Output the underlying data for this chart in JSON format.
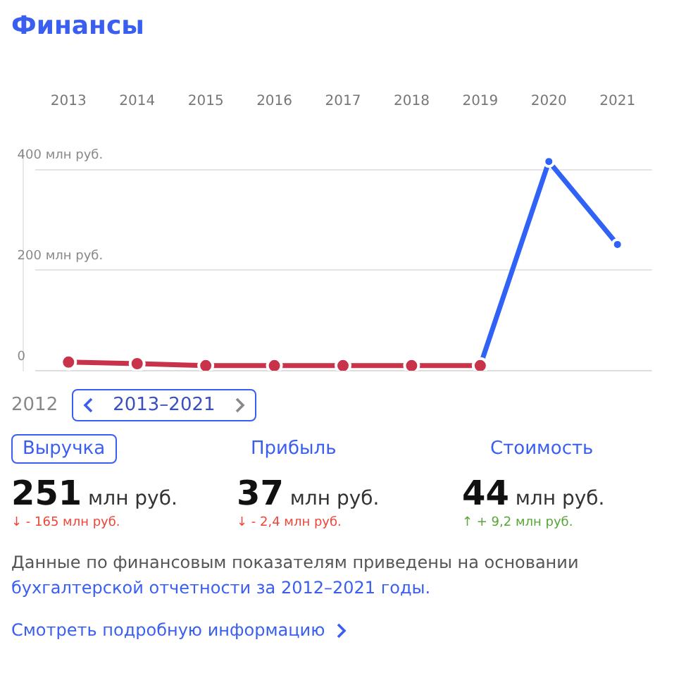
{
  "chart_data": {
    "type": "line",
    "title": "Финансы",
    "categories": [
      "2013",
      "2014",
      "2015",
      "2016",
      "2017",
      "2018",
      "2019",
      "2020",
      "2021"
    ],
    "series": [
      {
        "color": "#c8324a",
        "values": [
          17,
          14,
          10,
          10,
          10,
          10,
          10,
          null,
          null
        ]
      },
      {
        "color": "#2f62f5",
        "values": [
          null,
          null,
          null,
          null,
          null,
          null,
          10,
          416,
          251
        ]
      }
    ],
    "ylim": [
      0,
      440
    ],
    "yticks": [
      {
        "value": 0,
        "label": "0"
      },
      {
        "value": 200,
        "label": "200 млн руб."
      },
      {
        "value": 400,
        "label": "400 млн руб."
      }
    ],
    "grid": "y",
    "legend": false,
    "marker": "circle",
    "line_style": "solid",
    "annotations": [
      "2012",
      "2013–2021",
      "Выручка",
      "Прибыль",
      "Стоимость",
      "251 млн руб.",
      "37 млн руб.",
      "44 млн руб.",
      "↓ - 165 млн руб.",
      "↓ - 2,4 млн руб.",
      "↑ + 9,2 млн руб.",
      "Данные по финансовым показателям приведены на основании",
      "бухгалтерской отчетности за 2012–2021 годы.",
      "Смотреть подробную информацию"
    ]
  }
}
